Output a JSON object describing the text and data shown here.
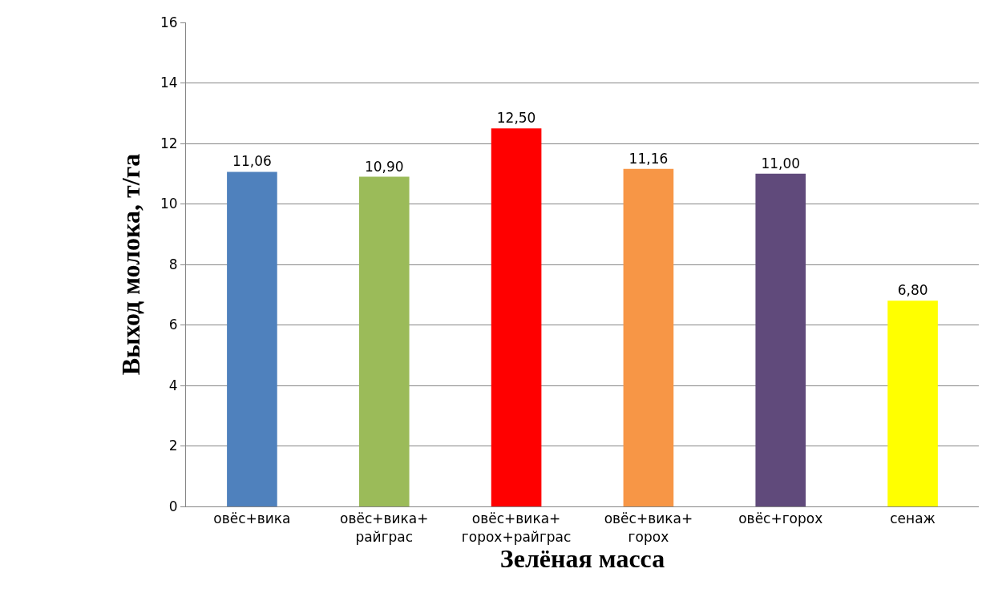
{
  "chart_data": {
    "type": "bar",
    "xlabel": "Зелёная масса",
    "ylabel": "Выход молока, т/га",
    "categories": [
      "овёс+вика",
      "овёс+вика+\nрайграс",
      "овёс+вика+\nгорох+райграс",
      "овёс+вика+\nгорох",
      "овёс+горох",
      "сенаж"
    ],
    "values": [
      11.06,
      10.9,
      12.5,
      11.16,
      11.0,
      6.8
    ],
    "colors": [
      "#4f81bd",
      "#9bbb59",
      "#ff0000",
      "#f79646",
      "#604a7b",
      "#ffff00"
    ],
    "value_labels": [
      "11,06",
      "10,90",
      "12,50",
      "11,16",
      "11,00",
      "6,80"
    ],
    "ylim": [
      0,
      16
    ],
    "yticks": [
      0,
      2,
      4,
      6,
      8,
      10,
      12,
      14,
      16
    ],
    "grid": "y",
    "legend": false
  }
}
